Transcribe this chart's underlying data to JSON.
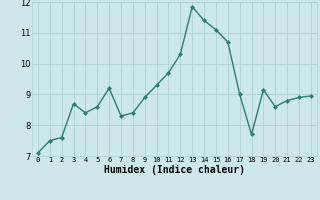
{
  "title": "",
  "xlabel": "Humidex (Indice chaleur)",
  "ylabel": "",
  "x_values": [
    0,
    1,
    2,
    3,
    4,
    5,
    6,
    7,
    8,
    9,
    10,
    11,
    12,
    13,
    14,
    15,
    16,
    17,
    18,
    19,
    20,
    21,
    22,
    23
  ],
  "y_values": [
    7.1,
    7.5,
    7.6,
    8.7,
    8.4,
    8.6,
    9.2,
    8.3,
    8.4,
    8.9,
    9.3,
    9.7,
    10.3,
    11.85,
    11.4,
    11.1,
    10.7,
    9.0,
    7.7,
    9.15,
    8.6,
    8.8,
    8.9,
    8.95
  ],
  "line_color": "#2e7d6e",
  "marker": "D",
  "marker_size": 2.0,
  "line_width": 1.0,
  "background_color": "#cce8e8",
  "grid_color": "#b0d0d0",
  "ylim": [
    7,
    12
  ],
  "yticks": [
    7,
    8,
    9,
    10,
    11,
    12
  ],
  "xlim": [
    -0.5,
    23.5
  ],
  "xticks": [
    0,
    1,
    2,
    3,
    4,
    5,
    6,
    7,
    8,
    9,
    10,
    11,
    12,
    13,
    14,
    15,
    16,
    17,
    18,
    19,
    20,
    21,
    22,
    23
  ],
  "xlabel_fontsize": 7,
  "ytick_fontsize": 6,
  "xtick_fontsize": 5
}
